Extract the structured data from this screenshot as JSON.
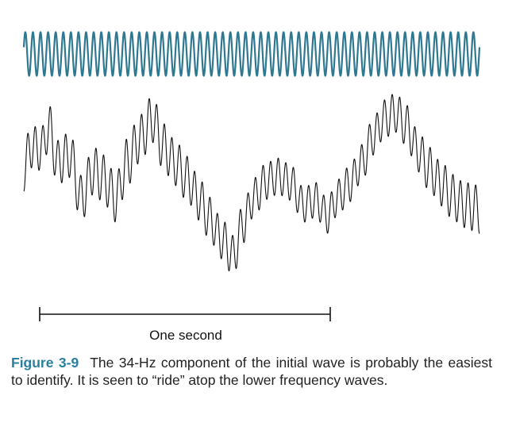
{
  "figure": {
    "scale_label": "One second",
    "caption_label": "Figure 3-9",
    "caption_text": "The 34-Hz component of the initial wave is probably the easiest to identify. It is seen to “ride” atop the lower frequency waves."
  },
  "colors": {
    "fast_wave": "#2E7891",
    "composite_wave": "#111111",
    "caption_label": "#2A7FA0",
    "caption_text": "#222222"
  }
}
